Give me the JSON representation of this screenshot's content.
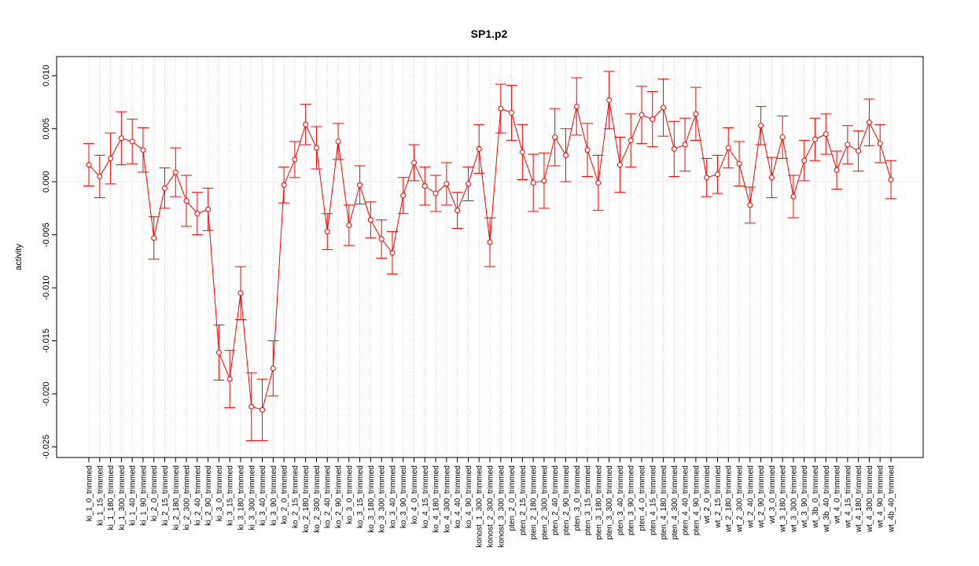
{
  "chart_data": {
    "type": "line",
    "title": "SP1.p2",
    "xlabel": "",
    "ylabel": "activity",
    "ylim": [
      -0.026,
      0.0118
    ],
    "yticks": [
      -0.025,
      -0.02,
      -0.015,
      -0.01,
      -0.005,
      0.0,
      0.005,
      0.01
    ],
    "ytick_labels": [
      "-0.025",
      "-0.020",
      "-0.015",
      "-0.010",
      "-0.005",
      "0.000",
      "0.005",
      "0.010"
    ],
    "grid": true,
    "error_bars": true,
    "colors": {
      "series": "#ff0000",
      "grid": "#d3d3d3",
      "axis": "#000000"
    },
    "categories": [
      "ki_1_0_trimmed",
      "ki_1_15_trimmed",
      "ki_1_180_trimmed",
      "ki_1_300_trimmed",
      "ki_1_40_trimmed",
      "ki_1_90_trimmed",
      "ki_2_0_trimmed",
      "ki_2_15_trimmed",
      "ki_2_180_trimmed",
      "ki_2_300_trimmed",
      "ki_2_40_trimmed",
      "ki_2_90_trimmed",
      "ki_3_0_trimmed",
      "ki_3_15_trimmed",
      "ki_3_180_trimmed",
      "ki_3_300_trimmed",
      "ki_3_40_trimmed",
      "ki_3_90_trimmed",
      "ko_2_0_trimmed",
      "ko_2_15_trimmed",
      "ko_2_180_trimmed",
      "ko_2_300_trimmed",
      "ko_2_40_trimmed",
      "ko_2_90_trimmed",
      "ko_3_0_trimmed",
      "ko_3_15_trimmed",
      "ko_3_180_trimmed",
      "ko_3_300_trimmed",
      "ko_3_40_trimmed",
      "ko_3_90_trimmed",
      "ko_4_0_trimmed",
      "ko_4_15_trimmed",
      "ko_4_180_trimmed",
      "ko_4_300_trimmed",
      "ko_4_40_trimmed",
      "ko_4_90_trimmed",
      "konost_1_300_trimmed",
      "konost_2_300_trimmed",
      "konost_3_300_trimmed",
      "pten_2_0_trimmed",
      "pten_2_15_trimmed",
      "pten_2_180_trimmed",
      "pten_2_300_trimmed",
      "pten_2_40_trimmed",
      "pten_2_90_trimmed",
      "pten_3_0_trimmed",
      "pten_3_15_trimmed",
      "pten_3_180_trimmed",
      "pten_3_300_trimmed",
      "pten_3_40_trimmed",
      "pten_3_90_trimmed",
      "pten_4_0_trimmed",
      "pten_4_15_trimmed",
      "pten_4_180_trimmed",
      "pten_4_300_trimmed",
      "pten_4_40_trimmed",
      "pten_4_90_trimmed",
      "wt_2_0_trimmed",
      "wt_2_15_trimmed",
      "wt_2_180_trimmed",
      "wt_2_300_trimmed",
      "wt_2_40_trimmed",
      "wt_2_90_trimmed",
      "wt_3_0_trimmed",
      "wt_3_180_trimmed",
      "wt_3_300_trimmed",
      "wt_3_90_trimmed",
      "wt_3b_0_trimmed",
      "wt_3b_40_trimmed",
      "wt_4_0_trimmed",
      "wt_4_15_trimmed",
      "wt_4_180_trimmed",
      "wt_4_300_trimmed",
      "wt_4_90_trimmed",
      "wt_4b_40_trimmed"
    ],
    "values": [
      0.0016,
      0.0005,
      0.0022,
      0.0041,
      0.0038,
      0.003,
      -0.0053,
      -0.0006,
      0.0009,
      -0.0018,
      -0.003,
      -0.0026,
      -0.0161,
      -0.0186,
      -0.0105,
      -0.0212,
      -0.0215,
      -0.0176,
      -0.0003,
      0.0021,
      0.0054,
      0.0032,
      -0.0047,
      0.0038,
      -0.0041,
      -0.0003,
      -0.0036,
      -0.0054,
      -0.0067,
      -0.0013,
      0.0018,
      -0.0004,
      -0.0011,
      -0.0002,
      -0.0027,
      -0.0002,
      0.0031,
      -0.0057,
      0.0069,
      0.0065,
      0.0028,
      -0.0001,
      0.0001,
      0.0042,
      0.0025,
      0.0071,
      0.003,
      -0.0001,
      0.0077,
      0.0016,
      0.0039,
      0.0063,
      0.0059,
      0.007,
      0.0031,
      0.0035,
      0.0064,
      0.0004,
      0.0007,
      0.0032,
      0.0017,
      -0.0022,
      0.0053,
      0.0004,
      0.0042,
      -0.0014,
      0.002,
      0.004,
      0.0045,
      0.0011,
      0.0035,
      0.0029,
      0.0056,
      0.0036,
      0.0002
    ],
    "errors": [
      0.002,
      0.002,
      0.0024,
      0.0025,
      0.0021,
      0.0021,
      0.002,
      0.0019,
      0.0023,
      0.0024,
      0.002,
      0.002,
      0.0026,
      0.0027,
      0.0025,
      0.0032,
      0.0029,
      0.0026,
      0.0017,
      0.0017,
      0.0019,
      0.002,
      0.0017,
      0.0017,
      0.0019,
      0.0018,
      0.0017,
      0.0018,
      0.002,
      0.0017,
      0.0017,
      0.0018,
      0.0017,
      0.002,
      0.0017,
      0.0016,
      0.0023,
      0.0023,
      0.0023,
      0.0026,
      0.0026,
      0.0027,
      0.0026,
      0.0027,
      0.0025,
      0.0027,
      0.0025,
      0.0026,
      0.0027,
      0.0026,
      0.0025,
      0.0027,
      0.0026,
      0.0027,
      0.0026,
      0.0025,
      0.0025,
      0.0018,
      0.0018,
      0.0019,
      0.0021,
      0.0017,
      0.0018,
      0.0019,
      0.002,
      0.002,
      0.0019,
      0.002,
      0.0019,
      0.0018,
      0.0018,
      0.0019,
      0.0022,
      0.0018,
      0.0018
    ]
  }
}
